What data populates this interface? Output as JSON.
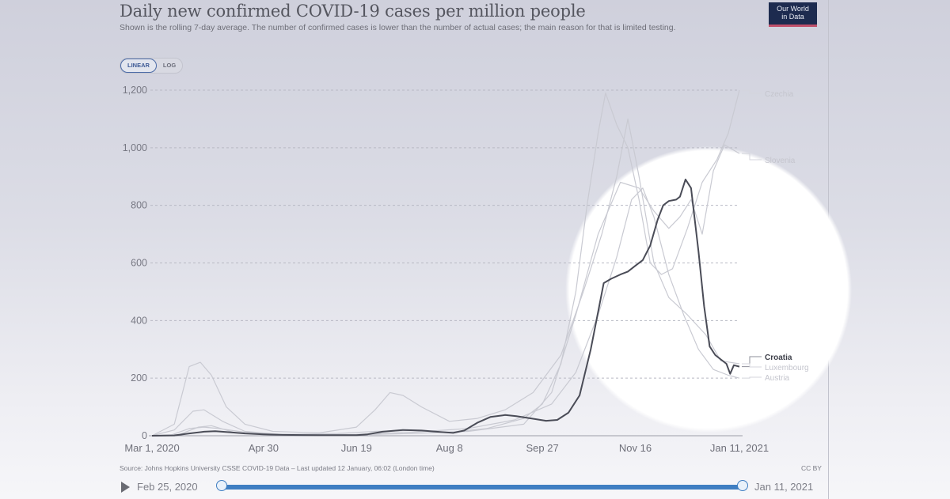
{
  "header": {
    "title": "Daily new confirmed COVID-19 cases per million people",
    "subtitle": "Shown is the rolling 7-day average. The number of confirmed cases is lower than the number of actual cases; the main reason for that is limited testing.",
    "logo_line1": "Our World",
    "logo_line2": "in Data"
  },
  "scale_toggle": {
    "options": [
      "LINEAR",
      "LOG"
    ],
    "selected": "LINEAR"
  },
  "footer": {
    "source": "Source: Johns Hopkins University CSSE COVID-19 Data – Last updated 12 January, 06:02 (London time)",
    "license": "CC BY"
  },
  "timeline": {
    "start_label": "Feb 25, 2020",
    "end_label": "Jan 11, 2021",
    "play_icon": "play-icon"
  },
  "colors": {
    "highlight_series": "#4a4c57",
    "background_series": "#c9cad2",
    "gridline": "#b8b9c4",
    "slider": "#3f7ec2",
    "logo_bg": "#1d2b4f",
    "logo_accent": "#c0506a"
  },
  "chart_data": {
    "type": "line",
    "title": "Daily new confirmed COVID-19 cases per million people",
    "xlabel": "",
    "ylabel": "",
    "x_unit": "days since Mar 1, 2020",
    "xlim": [
      0,
      316
    ],
    "ylim": [
      0,
      1200
    ],
    "grid": true,
    "y_ticks": [
      0,
      200,
      400,
      600,
      800,
      1000,
      1200
    ],
    "y_tick_labels": [
      "0",
      "200",
      "400",
      "600",
      "800",
      "1,000",
      "1,200"
    ],
    "x_ticks": [
      0,
      60,
      110,
      160,
      210,
      260,
      316
    ],
    "x_tick_labels": [
      "Mar 1, 2020",
      "Apr 30",
      "Jun 19",
      "Aug 8",
      "Sep 27",
      "Nov 16",
      "Jan 11, 2021"
    ],
    "legend_placement": "right-end-labels",
    "series": [
      {
        "name": "Croatia",
        "highlight": true,
        "points": [
          [
            0,
            0
          ],
          [
            12,
            1
          ],
          [
            20,
            8
          ],
          [
            28,
            14
          ],
          [
            34,
            16
          ],
          [
            42,
            12
          ],
          [
            50,
            8
          ],
          [
            60,
            5
          ],
          [
            70,
            3
          ],
          [
            90,
            2
          ],
          [
            110,
            2
          ],
          [
            116,
            5
          ],
          [
            124,
            14
          ],
          [
            135,
            20
          ],
          [
            145,
            18
          ],
          [
            155,
            13
          ],
          [
            162,
            10
          ],
          [
            168,
            18
          ],
          [
            175,
            45
          ],
          [
            182,
            65
          ],
          [
            190,
            72
          ],
          [
            196,
            68
          ],
          [
            204,
            60
          ],
          [
            212,
            52
          ],
          [
            218,
            55
          ],
          [
            224,
            80
          ],
          [
            230,
            140
          ],
          [
            236,
            300
          ],
          [
            240,
            430
          ],
          [
            243,
            530
          ],
          [
            247,
            545
          ],
          [
            252,
            560
          ],
          [
            256,
            570
          ],
          [
            260,
            590
          ],
          [
            264,
            610
          ],
          [
            268,
            660
          ],
          [
            272,
            750
          ],
          [
            275,
            800
          ],
          [
            278,
            815
          ],
          [
            282,
            820
          ],
          [
            284,
            830
          ],
          [
            287,
            890
          ],
          [
            290,
            860
          ],
          [
            294,
            640
          ],
          [
            297,
            450
          ],
          [
            300,
            310
          ],
          [
            303,
            280
          ],
          [
            306,
            265
          ],
          [
            309,
            250
          ],
          [
            311,
            215
          ],
          [
            313,
            245
          ],
          [
            316,
            240
          ]
        ]
      },
      {
        "name": "Czechia",
        "highlight": false,
        "points": [
          [
            0,
            0
          ],
          [
            10,
            2
          ],
          [
            20,
            25
          ],
          [
            28,
            30
          ],
          [
            36,
            25
          ],
          [
            50,
            12
          ],
          [
            70,
            5
          ],
          [
            100,
            8
          ],
          [
            120,
            15
          ],
          [
            140,
            18
          ],
          [
            160,
            12
          ],
          [
            180,
            25
          ],
          [
            200,
            60
          ],
          [
            210,
            110
          ],
          [
            220,
            250
          ],
          [
            228,
            500
          ],
          [
            234,
            800
          ],
          [
            240,
            1050
          ],
          [
            244,
            1190
          ],
          [
            250,
            1080
          ],
          [
            256,
            1000
          ],
          [
            262,
            820
          ],
          [
            268,
            600
          ],
          [
            274,
            560
          ],
          [
            280,
            580
          ],
          [
            288,
            720
          ],
          [
            296,
            880
          ],
          [
            304,
            960
          ],
          [
            310,
            1050
          ],
          [
            316,
            1200
          ]
        ]
      },
      {
        "name": "Slovenia",
        "highlight": false,
        "points": [
          [
            0,
            0
          ],
          [
            15,
            5
          ],
          [
            25,
            30
          ],
          [
            32,
            35
          ],
          [
            45,
            10
          ],
          [
            70,
            2
          ],
          [
            110,
            3
          ],
          [
            140,
            8
          ],
          [
            170,
            15
          ],
          [
            200,
            40
          ],
          [
            215,
            150
          ],
          [
            228,
            420
          ],
          [
            240,
            700
          ],
          [
            252,
            880
          ],
          [
            262,
            860
          ],
          [
            270,
            780
          ],
          [
            278,
            720
          ],
          [
            284,
            760
          ],
          [
            290,
            820
          ],
          [
            296,
            700
          ],
          [
            302,
            920
          ],
          [
            308,
            1010
          ],
          [
            316,
            980
          ]
        ]
      },
      {
        "name": "Luxembourg",
        "highlight": false,
        "points": [
          [
            0,
            0
          ],
          [
            12,
            40
          ],
          [
            20,
            240
          ],
          [
            26,
            255
          ],
          [
            32,
            210
          ],
          [
            40,
            100
          ],
          [
            50,
            40
          ],
          [
            65,
            15
          ],
          [
            90,
            10
          ],
          [
            110,
            30
          ],
          [
            120,
            90
          ],
          [
            128,
            150
          ],
          [
            135,
            140
          ],
          [
            145,
            100
          ],
          [
            160,
            50
          ],
          [
            175,
            60
          ],
          [
            190,
            90
          ],
          [
            205,
            150
          ],
          [
            220,
            280
          ],
          [
            232,
            500
          ],
          [
            242,
            700
          ],
          [
            250,
            900
          ],
          [
            256,
            1100
          ],
          [
            262,
            900
          ],
          [
            270,
            600
          ],
          [
            278,
            480
          ],
          [
            288,
            420
          ],
          [
            298,
            350
          ],
          [
            306,
            260
          ],
          [
            316,
            250
          ]
        ]
      },
      {
        "name": "Austria",
        "highlight": false,
        "points": [
          [
            0,
            0
          ],
          [
            12,
            20
          ],
          [
            22,
            85
          ],
          [
            28,
            90
          ],
          [
            38,
            50
          ],
          [
            50,
            15
          ],
          [
            70,
            4
          ],
          [
            110,
            5
          ],
          [
            140,
            12
          ],
          [
            170,
            25
          ],
          [
            195,
            55
          ],
          [
            215,
            110
          ],
          [
            228,
            220
          ],
          [
            240,
            420
          ],
          [
            250,
            620
          ],
          [
            258,
            820
          ],
          [
            264,
            860
          ],
          [
            270,
            760
          ],
          [
            278,
            560
          ],
          [
            286,
            420
          ],
          [
            294,
            300
          ],
          [
            302,
            230
          ],
          [
            310,
            210
          ],
          [
            316,
            200
          ]
        ]
      }
    ]
  }
}
